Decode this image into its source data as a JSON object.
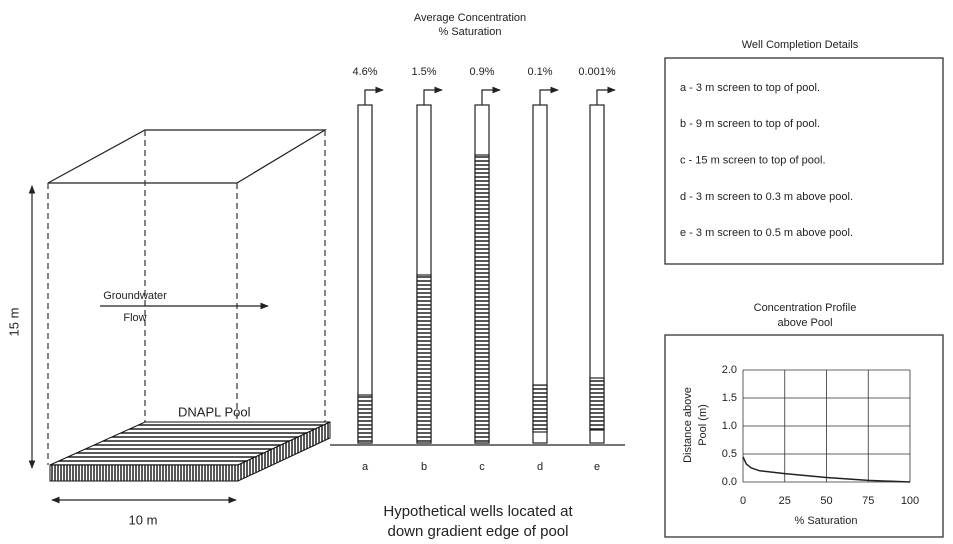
{
  "block": {
    "height": "15 m",
    "width": "10 m",
    "flow_label": [
      "Groundwater",
      "Flow"
    ],
    "pool_label": "DNAPL Pool"
  },
  "wells": {
    "title": [
      "Average Concentration",
      "% Saturation"
    ],
    "items": [
      {
        "id": "a",
        "concentration": "4.6%"
      },
      {
        "id": "b",
        "concentration": "1.5%"
      },
      {
        "id": "c",
        "concentration": "0.9%"
      },
      {
        "id": "d",
        "concentration": "0.1%"
      },
      {
        "id": "e",
        "concentration": "0.001%"
      }
    ],
    "caption": [
      "Hypothetical wells located at",
      "down gradient edge of pool"
    ]
  },
  "details": {
    "title": "Well Completion Details",
    "items": [
      "a - 3 m screen to top of pool.",
      "b - 9 m screen to top of pool.",
      "c - 15 m screen to top of pool.",
      "d - 3 m screen to 0.3 m above pool.",
      "e - 3 m screen to 0.5 m above pool."
    ]
  },
  "profile_chart": {
    "type": "line",
    "title": [
      "Concentration Profile",
      "above Pool"
    ],
    "xlabel": "% Saturation",
    "ylabel": [
      "Distance above",
      "Pool (m)"
    ],
    "x": [
      0,
      2,
      5,
      10,
      25,
      50,
      75,
      100
    ],
    "values": [
      0.45,
      0.32,
      0.25,
      0.2,
      0.15,
      0.08,
      0.03,
      0.0
    ],
    "color": "#222222",
    "xlim": [
      0,
      100
    ],
    "xticks": [
      0,
      25,
      50,
      75,
      100
    ],
    "ylim": [
      0,
      2
    ],
    "yticks": [
      {
        "value": 0,
        "label": "0.0"
      },
      {
        "value": 0.5,
        "label": "0.5"
      },
      {
        "value": 1,
        "label": "1.0"
      },
      {
        "value": 1.5,
        "label": "1.5"
      },
      {
        "value": 2,
        "label": "2.0"
      }
    ],
    "grid": true
  }
}
